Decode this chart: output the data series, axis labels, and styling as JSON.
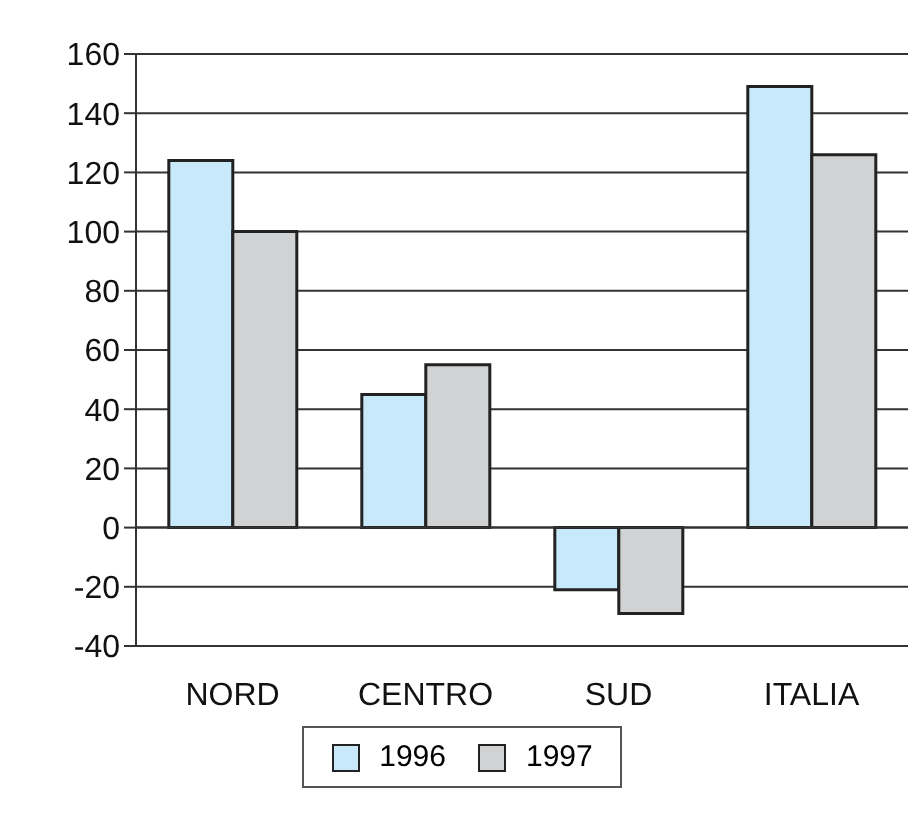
{
  "chart_data": {
    "type": "bar",
    "categories": [
      "NORD",
      "CENTRO",
      "SUD",
      "ITALIA"
    ],
    "series": [
      {
        "name": "1996",
        "color": "#c8e9f9",
        "values": [
          124,
          45,
          -21,
          149
        ]
      },
      {
        "name": "1997",
        "color": "#d1d2d4",
        "values": [
          100,
          55,
          -29,
          126
        ]
      }
    ],
    "ylim": [
      -40,
      160
    ],
    "yticks": [
      -40,
      -20,
      0,
      20,
      40,
      60,
      80,
      100,
      120,
      140,
      160
    ],
    "grid": "y",
    "legend": "bottom"
  }
}
